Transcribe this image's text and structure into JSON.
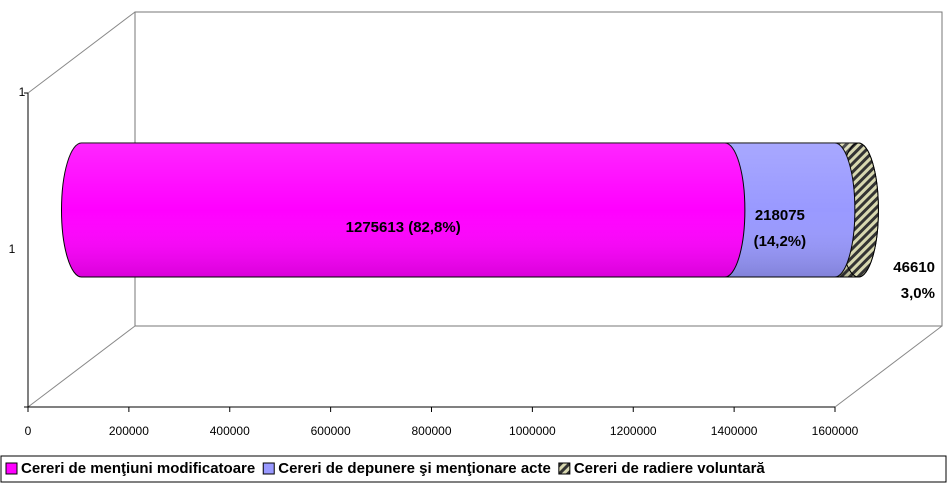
{
  "chart_data": {
    "type": "bar3d-stacked-horizontal",
    "categories": [
      "1"
    ],
    "zticks": [
      "1"
    ],
    "series": [
      {
        "name": "Cereri de menţiuni modificatoare",
        "color": "#ff00ff",
        "values": [
          1275613
        ],
        "value_labels": [
          [
            "1275613 (82,8%)"
          ]
        ]
      },
      {
        "name": "Cereri de depunere şi menţionare acte",
        "color": "#9999ff",
        "values": [
          218075
        ],
        "value_labels": [
          [
            "218075",
            "(14,2%)"
          ]
        ]
      },
      {
        "name": "Cereri de radiere voluntară",
        "color": "#333333",
        "pattern": "hatch",
        "values": [
          46610
        ],
        "value_labels": [
          [
            "46610",
            "3,0%"
          ]
        ]
      }
    ],
    "xlim": [
      0,
      1600000
    ],
    "xticks": [
      0,
      200000,
      400000,
      600000,
      800000,
      1000000,
      1200000,
      1400000,
      1600000
    ],
    "legend": "bottom"
  }
}
